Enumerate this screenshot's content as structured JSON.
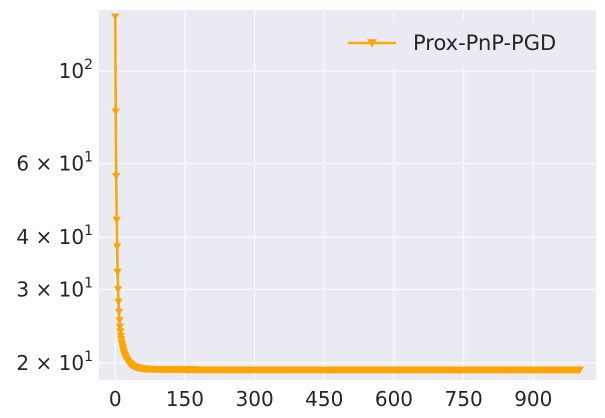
{
  "chart_data": {
    "type": "line",
    "title": "",
    "xlabel": "",
    "ylabel": "",
    "x_scale": "linear",
    "y_scale": "log",
    "xlim": [
      -35,
      1035
    ],
    "ylim": [
      18.2,
      140
    ],
    "grid": true,
    "legend_position": "upper right",
    "x_ticks": [
      0,
      150,
      300,
      450,
      600,
      750,
      900
    ],
    "x_tick_labels": [
      "0",
      "150",
      "300",
      "450",
      "600",
      "750",
      "900"
    ],
    "y_ticks": [
      {
        "value": 100,
        "base": "10",
        "exp": "2",
        "coef": ""
      },
      {
        "value": 60,
        "base": "10",
        "exp": "1",
        "coef": "6"
      },
      {
        "value": 40,
        "base": "10",
        "exp": "1",
        "coef": "4"
      },
      {
        "value": 30,
        "base": "10",
        "exp": "1",
        "coef": "3"
      },
      {
        "value": 20,
        "base": "10",
        "exp": "1",
        "coef": "2"
      }
    ],
    "series": [
      {
        "name": "Prox-PnP-PGD",
        "color": "#FFA500",
        "marker": "triangle-down",
        "x": [
          0,
          1,
          2,
          3,
          4,
          5,
          6,
          7,
          8,
          9,
          10,
          12,
          14,
          16,
          18,
          20,
          25,
          30,
          35,
          40,
          50,
          60,
          70,
          80,
          100,
          120,
          150,
          200,
          300,
          400,
          500,
          600,
          700,
          800,
          900,
          1000
        ],
        "y": [
          135,
          80,
          56,
          44,
          38,
          33,
          30,
          28,
          26.5,
          25.3,
          24.4,
          23.2,
          22.4,
          21.8,
          21.3,
          20.9,
          20.3,
          19.95,
          19.75,
          19.6,
          19.45,
          19.38,
          19.34,
          19.32,
          19.3,
          19.29,
          19.28,
          19.27,
          19.26,
          19.26,
          19.25,
          19.25,
          19.25,
          19.25,
          19.25,
          19.25
        ]
      }
    ]
  }
}
